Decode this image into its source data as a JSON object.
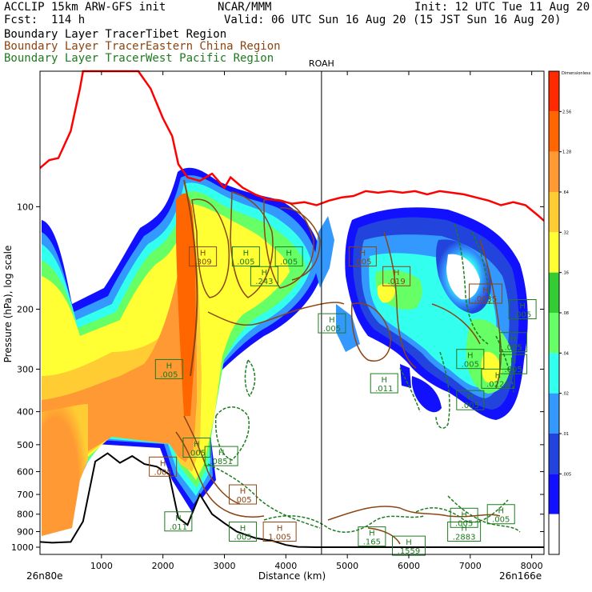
{
  "header": {
    "model": "ACCLIP 15km ARW-GFS init",
    "center": "NCAR/MMM",
    "init": "Init: 12 UTC Tue 11 Aug 20",
    "fcst": "Fcst:  114 h",
    "valid": "Valid: 06 UTC Sun 16 Aug 20 (15 JST Sun 16 Aug 20)"
  },
  "tracers": [
    {
      "label": "Boundary Layer Tracer",
      "region": "Tibet Region",
      "color": "#000000"
    },
    {
      "label": "Boundary Layer Tracer",
      "region": "Eastern China Region",
      "color": "#8B4513"
    },
    {
      "label": "Boundary Layer Tracer",
      "region": "West Pacific Region",
      "color": "#1E7B1E"
    }
  ],
  "chart_data": {
    "type": "cross-section",
    "ylabel": "Pressure (hPa), log scale",
    "xlabel": "Distance (km)",
    "left_endpoint": "26n80e",
    "right_endpoint": "26n166e",
    "marker_label": "ROAH",
    "marker_distance_km": 4580,
    "xlim": [
      0,
      8200
    ],
    "ylim": [
      1050,
      40
    ],
    "y_scale": "log",
    "x_ticks": [
      "1000",
      "2000",
      "3000",
      "4000",
      "5000",
      "6000",
      "7000",
      "8000"
    ],
    "y_ticks": [
      "100",
      "200",
      "300",
      "400",
      "500",
      "600",
      "700",
      "800",
      "900",
      "1000"
    ],
    "colorbar": {
      "top_label": "Dimensionless",
      "labels": [
        "2.56",
        "1.28",
        ".64",
        ".32",
        ".16",
        ".08",
        ".04",
        ".02",
        ".01",
        ".005"
      ],
      "colors": [
        "#ff2a00",
        "#ff6600",
        "#ff9933",
        "#ffcc33",
        "#ffff33",
        "#33cc33",
        "#66ff66",
        "#33ffee",
        "#3399ff",
        "#2244dd",
        "#1111ff",
        "#ffffff"
      ]
    },
    "tropopause": [
      [
        0,
        77
      ],
      [
        150,
        73
      ],
      [
        300,
        72
      ],
      [
        500,
        60
      ],
      [
        650,
        45
      ],
      [
        700,
        40
      ],
      [
        1600,
        40
      ],
      [
        1800,
        45
      ],
      [
        2000,
        55
      ],
      [
        2150,
        62
      ],
      [
        2250,
        75
      ],
      [
        2400,
        82
      ],
      [
        2600,
        84
      ],
      [
        2800,
        80
      ],
      [
        3000,
        88
      ],
      [
        3100,
        82
      ],
      [
        3300,
        88
      ],
      [
        3500,
        92
      ],
      [
        3700,
        95
      ],
      [
        3900,
        96
      ],
      [
        4100,
        98
      ],
      [
        4300,
        97
      ],
      [
        4500,
        99
      ],
      [
        4700,
        96
      ],
      [
        4900,
        94
      ],
      [
        5100,
        93
      ],
      [
        5300,
        90
      ],
      [
        5500,
        91
      ],
      [
        5700,
        90
      ],
      [
        5900,
        91
      ],
      [
        6100,
        90
      ],
      [
        6300,
        92
      ],
      [
        6500,
        90
      ],
      [
        6700,
        91
      ],
      [
        6900,
        92
      ],
      [
        7100,
        94
      ],
      [
        7300,
        96
      ],
      [
        7500,
        99
      ],
      [
        7700,
        97
      ],
      [
        7900,
        99
      ],
      [
        8100,
        106
      ],
      [
        8200,
        110
      ]
    ],
    "terrain_surface": [
      [
        0,
        965
      ],
      [
        200,
        970
      ],
      [
        500,
        965
      ],
      [
        700,
        840
      ],
      [
        900,
        560
      ],
      [
        1100,
        530
      ],
      [
        1300,
        565
      ],
      [
        1500,
        540
      ],
      [
        1700,
        570
      ],
      [
        1900,
        580
      ],
      [
        2100,
        610
      ],
      [
        2250,
        820
      ],
      [
        2400,
        860
      ],
      [
        2600,
        700
      ],
      [
        2800,
        800
      ],
      [
        3000,
        850
      ],
      [
        3200,
        900
      ],
      [
        3500,
        940
      ],
      [
        3800,
        960
      ],
      [
        4000,
        985
      ],
      [
        4200,
        998
      ],
      [
        4500,
        1000
      ],
      [
        8200,
        1000
      ]
    ],
    "h_labels": [
      {
        "x": 2650,
        "p": 140,
        "text": ".309",
        "color": "#8B4513"
      },
      {
        "x": 3650,
        "p": 160,
        "text": ".243",
        "color": "#1E7B1E"
      },
      {
        "x": 3350,
        "p": 140,
        "text": ".005",
        "color": "#1E7B1E"
      },
      {
        "x": 4050,
        "p": 140,
        "text": ".005",
        "color": "#1E7B1E"
      },
      {
        "x": 4750,
        "p": 220,
        "text": ".005",
        "color": "#1E7B1E"
      },
      {
        "x": 5800,
        "p": 160,
        "text": ".019",
        "color": "#8B4513"
      },
      {
        "x": 5250,
        "p": 140,
        "text": ".005",
        "color": "#8B4513"
      },
      {
        "x": 7250,
        "p": 180,
        "text": ".0035",
        "color": "#8B4513"
      },
      {
        "x": 2100,
        "p": 300,
        "text": ".005",
        "color": "#1E7B1E"
      },
      {
        "x": 5600,
        "p": 330,
        "text": ".011",
        "color": "#1E7B1E"
      },
      {
        "x": 7000,
        "p": 280,
        "text": ".005",
        "color": "#1E7B1E"
      },
      {
        "x": 7450,
        "p": 320,
        "text": ".0226",
        "color": "#1E7B1E"
      },
      {
        "x": 7000,
        "p": 370,
        "text": ".005",
        "color": "#1E7B1E"
      },
      {
        "x": 7700,
        "p": 250,
        "text": ".005",
        "color": "#1E7B1E"
      },
      {
        "x": 7700,
        "p": 290,
        "text": ".005",
        "color": "#1E7B1E"
      },
      {
        "x": 7850,
        "p": 200,
        "text": ".005",
        "color": "#1E7B1E"
      },
      {
        "x": 2950,
        "p": 540,
        "text": ".0851",
        "color": "#1E7B1E"
      },
      {
        "x": 2550,
        "p": 510,
        "text": ".005",
        "color": "#1E7B1E"
      },
      {
        "x": 2000,
        "p": 580,
        "text": ".005",
        "color": "#8B4513"
      },
      {
        "x": 3300,
        "p": 700,
        "text": ".005",
        "color": "#8B4513"
      },
      {
        "x": 2250,
        "p": 840,
        "text": ".011",
        "color": "#1E7B1E"
      },
      {
        "x": 3300,
        "p": 900,
        "text": ".005",
        "color": "#1E7B1E"
      },
      {
        "x": 3900,
        "p": 900,
        "text": "1.005",
        "color": "#8B4513"
      },
      {
        "x": 5400,
        "p": 930,
        "text": ".165",
        "color": "#1E7B1E"
      },
      {
        "x": 6000,
        "p": 990,
        "text": ".1559",
        "color": "#1E7B1E"
      },
      {
        "x": 6900,
        "p": 900,
        "text": ".2883",
        "color": "#1E7B1E"
      },
      {
        "x": 6900,
        "p": 820,
        "text": ".005",
        "color": "#1E7B1E"
      },
      {
        "x": 7500,
        "p": 800,
        "text": ".005",
        "color": "#1E7B1E"
      }
    ]
  }
}
